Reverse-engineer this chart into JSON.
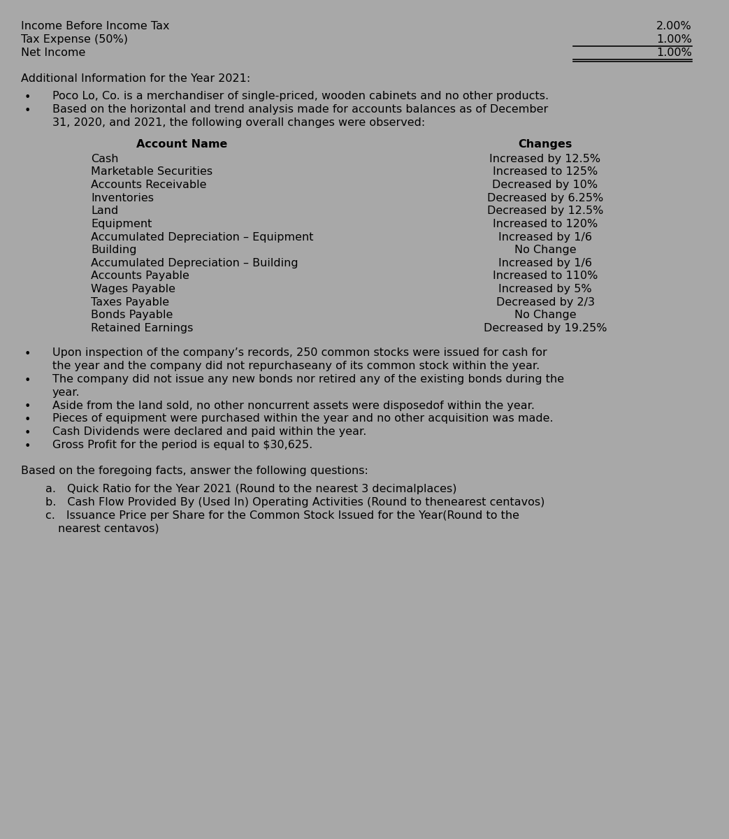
{
  "bg_color": "#a8a8a8",
  "text_color": "#000000",
  "font_size": 11.5,
  "font_family": "DejaVu Sans",
  "top_section": [
    {
      "label": "Income Before Income Tax",
      "value": "2.00%",
      "underline": false,
      "single_under": false
    },
    {
      "label": "Tax Expense (50%)",
      "value": "1.00%",
      "underline": true,
      "single_under": false
    },
    {
      "label": "Net Income",
      "value": "1.00%",
      "underline": false,
      "single_under": true
    }
  ],
  "additional_header": "Additional Information for the Year 2021:",
  "bullet_points_1": [
    "Poco Lo, Co. is a merchandiser of single-priced, wooden cabinets and no other products.",
    "Based on the horizontal and trend analysis made for accounts balances as of December\n    31, 2020, and 2021, the following overall changes were observed:"
  ],
  "table_header_left": "Account Name",
  "table_header_right": "Changes",
  "table_rows": [
    [
      "Cash",
      "Increased by 12.5%"
    ],
    [
      "Marketable Securities",
      "Increased to 125%"
    ],
    [
      "Accounts Receivable",
      "Decreased by 10%"
    ],
    [
      "Inventories",
      "Decreased by 6.25%"
    ],
    [
      "Land",
      "Decreased by 12.5%"
    ],
    [
      "Equipment",
      "Increased to 120%"
    ],
    [
      "Accumulated Depreciation – Equipment",
      "Increased by 1/6"
    ],
    [
      "Building",
      "No Change"
    ],
    [
      "Accumulated Depreciation – Building",
      "Increased by 1/6"
    ],
    [
      "Accounts Payable",
      "Increased to 110%"
    ],
    [
      "Wages Payable",
      "Increased by 5%"
    ],
    [
      "Taxes Payable",
      "Decreased by 2/3"
    ],
    [
      "Bonds Payable",
      "No Change"
    ],
    [
      "Retained Earnings",
      "Decreased by 19.25%"
    ]
  ],
  "bullet_points_2": [
    "Upon inspection of the company’s records, 250 common stocks were issued for cash for\n    the year and the company did not repurchaseany of its common stock within the year.",
    "The company did not issue any new bonds nor retired any of the existing bonds during the\n    year.",
    "Aside from the land sold, no other noncurrent assets were disposedof within the year.",
    "Pieces of equipment were purchased within the year and no other acquisition was made.",
    "Cash Dividends were declared and paid within the year.",
    "Gross Profit for the period is equal to $30,625."
  ],
  "based_on_text": "Based on the foregoing facts, answer the following questions:",
  "questions": [
    "a. Quick Ratio for the Year 2021 (Round to the nearest 3 decimalplaces)",
    "b. Cash Flow Provided By (Used In) Operating Activities (Round to thenearest centavos)",
    "c. Issuance Price per Share for the Common Stock Issued for the Year(Round to the\n      nearest centavos)"
  ]
}
